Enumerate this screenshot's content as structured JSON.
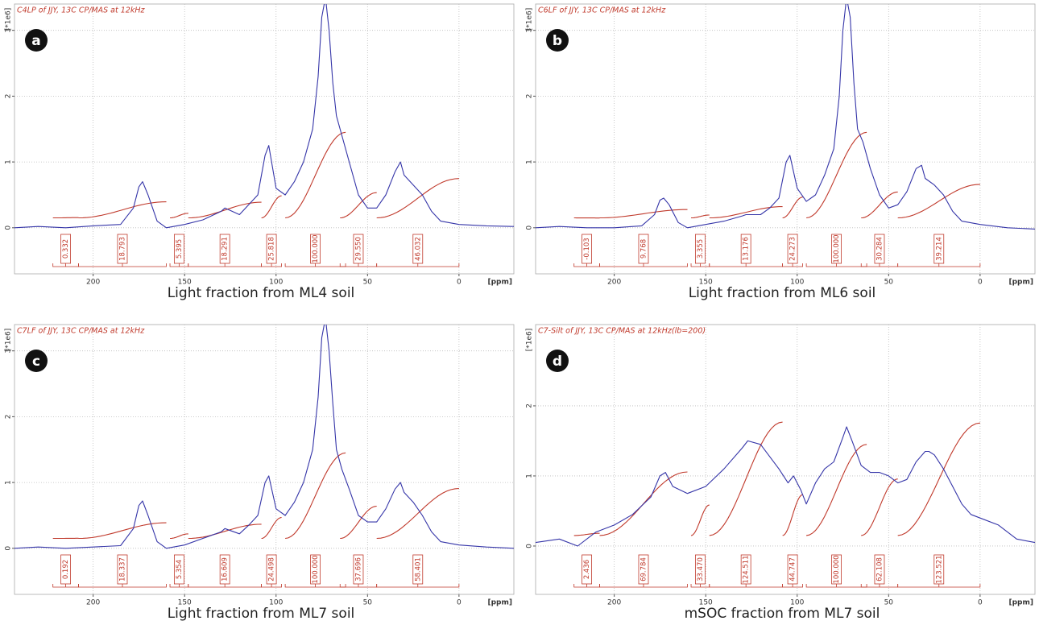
{
  "chart_data": [
    {
      "type": "line",
      "panel_label": "a",
      "title": "C4LP of JJY, 13C CP/MAS at 12kHz",
      "caption": "Light fraction from ML4 soil",
      "ylabel": "[*1e6]",
      "xlabel": "[ppm]",
      "xlim": [
        243,
        -30
      ],
      "ylim": [
        -0.7,
        3.4
      ],
      "xticks": [
        200,
        150,
        100,
        50,
        0
      ],
      "yticks": [
        0,
        1,
        2,
        3
      ],
      "grid": true,
      "x": [
        243,
        230,
        215,
        200,
        185,
        178,
        175,
        173,
        170,
        165,
        160,
        150,
        140,
        130,
        128,
        120,
        115,
        110,
        106,
        104,
        100,
        95,
        90,
        85,
        80,
        77,
        75,
        73,
        71,
        69,
        67,
        64,
        60,
        55,
        50,
        45,
        40,
        35,
        32,
        30,
        25,
        20,
        15,
        10,
        0,
        -15,
        -30
      ],
      "series": [
        {
          "color": "#3535a8",
          "values": [
            0,
            0.02,
            0,
            0.03,
            0.05,
            0.3,
            0.62,
            0.7,
            0.5,
            0.1,
            0.0,
            0.05,
            0.12,
            0.25,
            0.3,
            0.2,
            0.35,
            0.5,
            1.1,
            1.25,
            0.6,
            0.5,
            0.7,
            1.0,
            1.5,
            2.3,
            3.2,
            3.5,
            3.0,
            2.2,
            1.7,
            1.4,
            1.0,
            0.5,
            0.3,
            0.3,
            0.5,
            0.85,
            1.0,
            0.8,
            0.65,
            0.5,
            0.25,
            0.1,
            0.05,
            0.03,
            0.02
          ]
        }
      ],
      "integrals": {
        "color": "#c0392b",
        "values": [
          0.332,
          18.793,
          5.395,
          18.291,
          25.818,
          100,
          29.55,
          46.032
        ],
        "value_labels": [
          "0.332",
          "18.793",
          "5.395",
          "18.291",
          "25.818",
          "100.000",
          "29.550",
          "46.032"
        ],
        "regions": [
          [
            222,
            208
          ],
          [
            208,
            160
          ],
          [
            158,
            148
          ],
          [
            148,
            108
          ],
          [
            108,
            97
          ],
          [
            95,
            62
          ],
          [
            65,
            45
          ],
          [
            45,
            0
          ]
        ]
      }
    },
    {
      "type": "line",
      "panel_label": "b",
      "title": "C6LF of JJY, 13C CP/MAS at 12kHz",
      "caption": "Light fraction from ML6 soil",
      "ylabel": "[*1e6]",
      "xlabel": "[ppm]",
      "xlim": [
        243,
        -30
      ],
      "ylim": [
        -0.7,
        3.4
      ],
      "xticks": [
        200,
        150,
        100,
        50,
        0
      ],
      "yticks": [
        0,
        1,
        2,
        3
      ],
      "grid": true,
      "x": [
        243,
        230,
        215,
        200,
        185,
        178,
        175,
        173,
        170,
        165,
        160,
        150,
        140,
        130,
        128,
        120,
        115,
        110,
        106,
        104,
        100,
        95,
        90,
        85,
        80,
        77,
        75,
        73,
        71,
        69,
        67,
        64,
        60,
        55,
        50,
        45,
        40,
        35,
        32,
        30,
        25,
        20,
        15,
        10,
        0,
        -15,
        -30
      ],
      "series": [
        {
          "color": "#3535a8",
          "values": [
            0,
            0.02,
            0,
            0.0,
            0.03,
            0.2,
            0.42,
            0.45,
            0.35,
            0.08,
            0.0,
            0.05,
            0.1,
            0.18,
            0.2,
            0.2,
            0.3,
            0.45,
            1.0,
            1.1,
            0.6,
            0.4,
            0.5,
            0.8,
            1.2,
            2.0,
            3.0,
            3.5,
            3.2,
            2.2,
            1.5,
            1.3,
            0.9,
            0.5,
            0.3,
            0.35,
            0.55,
            0.9,
            0.95,
            0.75,
            0.65,
            0.5,
            0.25,
            0.1,
            0.05,
            0.0,
            -0.02
          ]
        }
      ],
      "integrals": {
        "color": "#c0392b",
        "values": [
          -0.103,
          9.768,
          3.355,
          13.176,
          24.273,
          100,
          30.284,
          39.214
        ],
        "value_labels": [
          "-0.103",
          "9.768",
          "3.355",
          "13.176",
          "24.273",
          "100.000",
          "30.284",
          "39.214"
        ],
        "regions": [
          [
            222,
            208
          ],
          [
            208,
            160
          ],
          [
            158,
            148
          ],
          [
            148,
            108
          ],
          [
            108,
            97
          ],
          [
            95,
            62
          ],
          [
            65,
            45
          ],
          [
            45,
            0
          ]
        ]
      }
    },
    {
      "type": "line",
      "panel_label": "c",
      "title": "C7LF of JJY, 13C CP/MAS at 12kHz",
      "caption": "Light fraction from ML7 soil",
      "ylabel": "[*1e6]",
      "xlabel": "[ppm]",
      "xlim": [
        243,
        -30
      ],
      "ylim": [
        -0.7,
        3.4
      ],
      "xticks": [
        200,
        150,
        100,
        50,
        0
      ],
      "yticks": [
        0,
        1,
        2,
        3
      ],
      "grid": true,
      "x": [
        243,
        230,
        215,
        200,
        185,
        178,
        175,
        173,
        170,
        165,
        160,
        150,
        140,
        130,
        128,
        120,
        115,
        110,
        106,
        104,
        100,
        95,
        90,
        85,
        80,
        77,
        75,
        73,
        71,
        69,
        67,
        64,
        60,
        55,
        50,
        45,
        40,
        35,
        32,
        30,
        25,
        20,
        15,
        10,
        0,
        -15,
        -30
      ],
      "series": [
        {
          "color": "#3535a8",
          "values": [
            0.0,
            0.02,
            0.0,
            0.02,
            0.04,
            0.3,
            0.65,
            0.72,
            0.5,
            0.1,
            0.0,
            0.05,
            0.15,
            0.25,
            0.3,
            0.22,
            0.35,
            0.5,
            1.0,
            1.1,
            0.6,
            0.5,
            0.7,
            1.0,
            1.5,
            2.3,
            3.2,
            3.5,
            3.0,
            2.2,
            1.5,
            1.2,
            0.9,
            0.5,
            0.4,
            0.4,
            0.6,
            0.9,
            1.0,
            0.85,
            0.7,
            0.5,
            0.25,
            0.1,
            0.05,
            0.02,
            0.0
          ]
        }
      ],
      "integrals": {
        "color": "#c0392b",
        "values": [
          0.192,
          18.337,
          5.354,
          16.609,
          24.498,
          100,
          37.696,
          58.401
        ],
        "value_labels": [
          "0.192",
          "18.337",
          "5.354",
          "16.609",
          "24.498",
          "100.000",
          "37.696",
          "58.401"
        ],
        "regions": [
          [
            222,
            208
          ],
          [
            208,
            160
          ],
          [
            158,
            148
          ],
          [
            148,
            108
          ],
          [
            108,
            97
          ],
          [
            95,
            62
          ],
          [
            65,
            45
          ],
          [
            45,
            0
          ]
        ]
      }
    },
    {
      "type": "line",
      "panel_label": "d",
      "title": "C7-Silt of JJY, 13C CP/MAS at 12kHz(lb=200)",
      "caption": "mSOC fraction from ML7 soil",
      "ylabel": "[*1e6]",
      "xlabel": "[ppm]",
      "xlim": [
        243,
        -30
      ],
      "ylim": [
        -0.69,
        3.16
      ],
      "xticks": [
        200,
        150,
        100,
        50,
        0
      ],
      "yticks": [
        0,
        1,
        2
      ],
      "grid": true,
      "x": [
        243,
        230,
        220,
        210,
        200,
        190,
        180,
        175,
        172,
        168,
        160,
        150,
        140,
        130,
        127,
        120,
        110,
        105,
        102,
        98,
        95,
        90,
        85,
        80,
        75,
        73,
        70,
        65,
        60,
        55,
        50,
        45,
        40,
        35,
        30,
        28,
        25,
        20,
        15,
        10,
        5,
        0,
        -10,
        -20,
        -30
      ],
      "series": [
        {
          "color": "#3535a8",
          "values": [
            0.05,
            0.1,
            0.0,
            0.2,
            0.3,
            0.45,
            0.7,
            1.0,
            1.05,
            0.85,
            0.75,
            0.85,
            1.1,
            1.4,
            1.5,
            1.45,
            1.1,
            0.9,
            1.0,
            0.8,
            0.6,
            0.9,
            1.1,
            1.2,
            1.55,
            1.7,
            1.5,
            1.15,
            1.05,
            1.05,
            1.0,
            0.9,
            0.95,
            1.2,
            1.35,
            1.35,
            1.3,
            1.1,
            0.85,
            0.6,
            0.45,
            0.4,
            0.3,
            0.1,
            0.05
          ]
        }
      ],
      "integrals": {
        "color": "#c0392b",
        "values": [
          2.436,
          69.784,
          33.47,
          124.511,
          44.747,
          100,
          62.108,
          123.521
        ],
        "value_labels": [
          "2.436",
          "69.784",
          "33.470",
          "124.511",
          "44.747",
          "100.000",
          "62.108",
          "123.521"
        ],
        "regions": [
          [
            222,
            208
          ],
          [
            208,
            160
          ],
          [
            158,
            148
          ],
          [
            148,
            108
          ],
          [
            108,
            97
          ],
          [
            95,
            62
          ],
          [
            65,
            45
          ],
          [
            45,
            0
          ]
        ]
      }
    }
  ]
}
